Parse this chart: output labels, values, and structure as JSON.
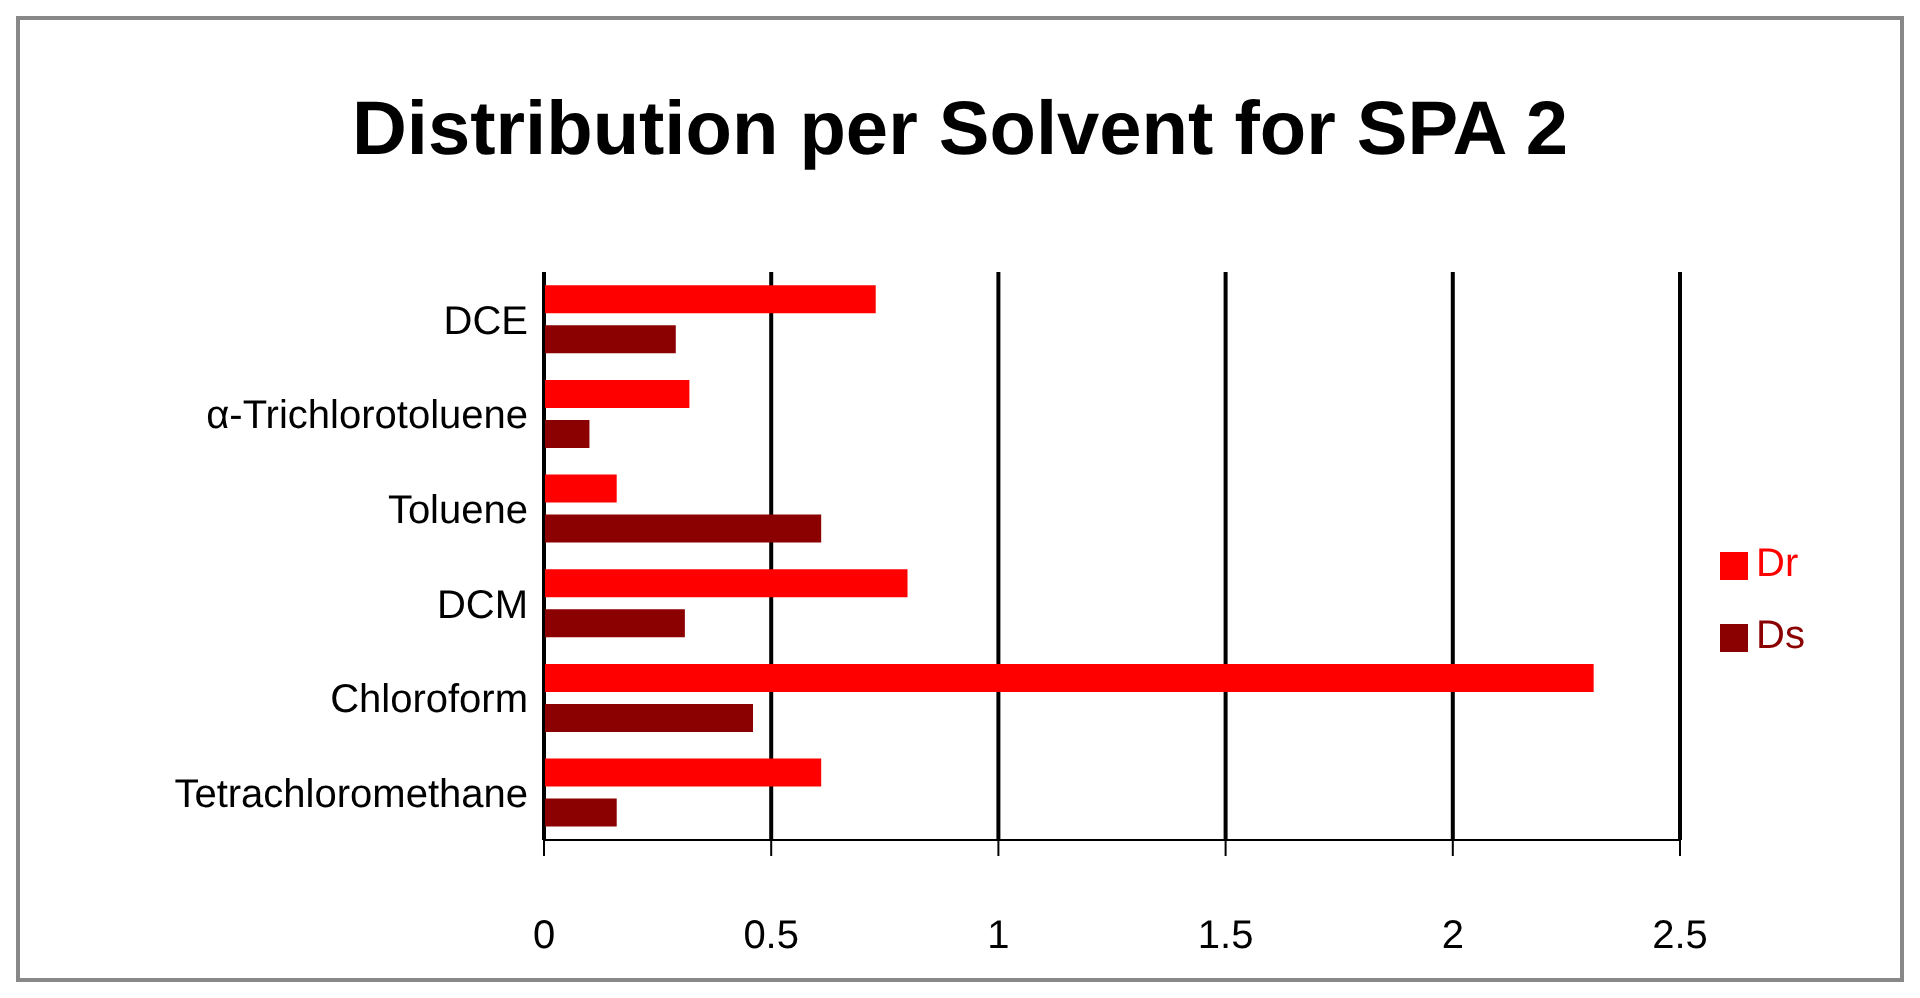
{
  "chart_data": {
    "type": "bar",
    "orientation": "horizontal",
    "title": "Distribution per Solvent for SPA 2",
    "categories": [
      "DCE",
      "α-Trichlorotoluene",
      "Toluene",
      "DCM",
      "Chloroform",
      "Tetrachloromethane"
    ],
    "series": [
      {
        "name": "Dr",
        "color": "#ff0000",
        "values": [
          0.73,
          0.32,
          0.16,
          0.8,
          2.31,
          0.61
        ]
      },
      {
        "name": "Ds",
        "color": "#8b0000",
        "values": [
          0.29,
          0.1,
          0.61,
          0.31,
          0.46,
          0.16
        ]
      }
    ],
    "xlim": [
      0,
      2.5
    ],
    "xticks": [
      0,
      0.5,
      1,
      1.5,
      2,
      2.5
    ],
    "grid": "x",
    "legend": "right"
  }
}
